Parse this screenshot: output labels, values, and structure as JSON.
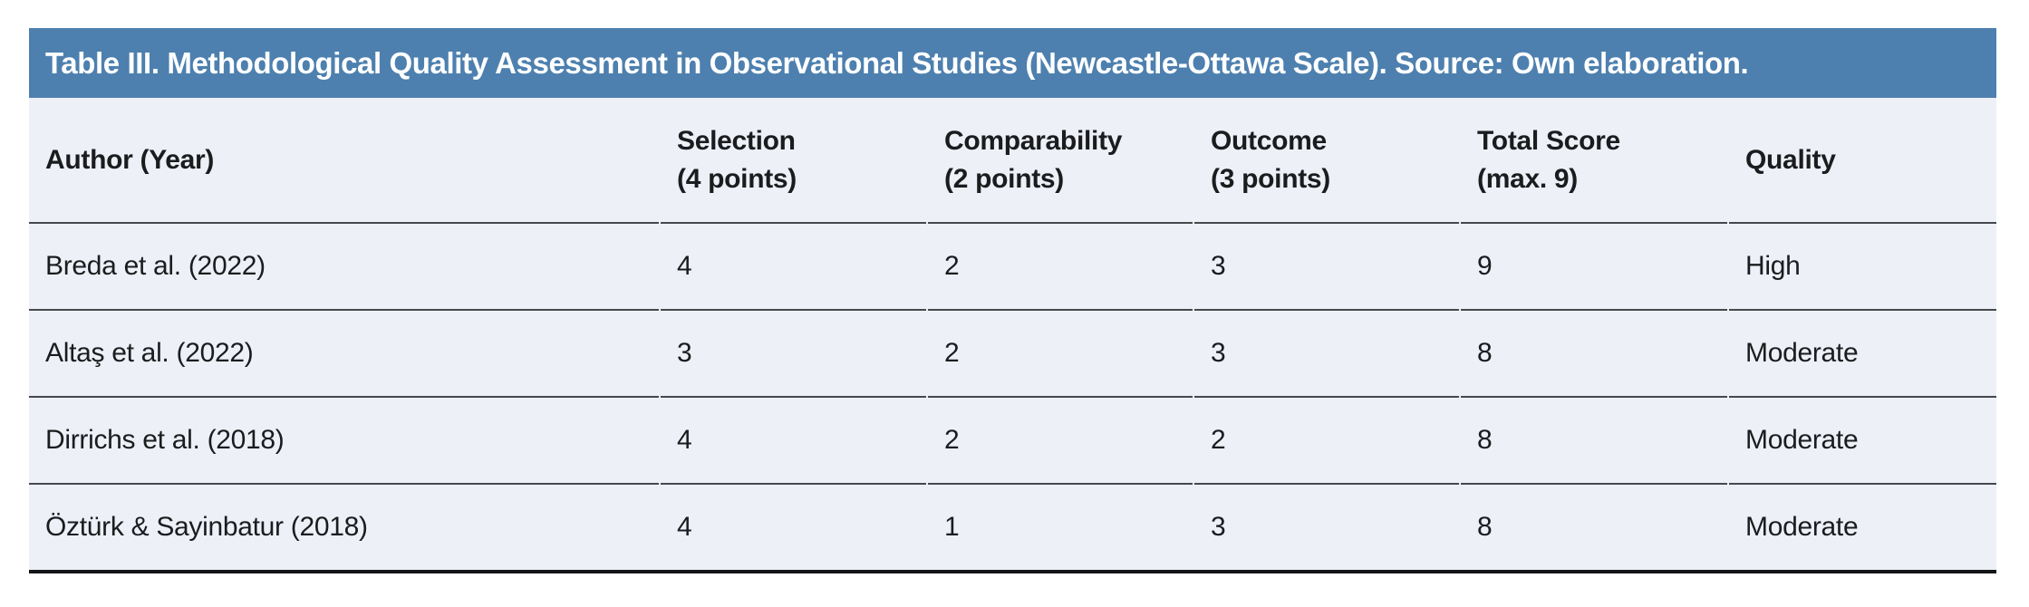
{
  "figure": {
    "title": "Table III. Methodological Quality Assessment in Observational Studies (Newcastle-Ottawa Scale). Source: Own elaboration.",
    "columns": [
      {
        "line1": "Author (Year)",
        "line2": ""
      },
      {
        "line1": "Selection",
        "line2": "(4 points)"
      },
      {
        "line1": "Comparability",
        "line2": "(2 points)"
      },
      {
        "line1": "Outcome",
        "line2": "(3 points)"
      },
      {
        "line1": "Total Score",
        "line2": "(max. 9)"
      },
      {
        "line1": "Quality",
        "line2": ""
      }
    ],
    "rows": [
      {
        "author": "Breda et al. (2022)",
        "selection": "4",
        "comparability": "2",
        "outcome": "3",
        "total_score": "9",
        "quality": "High"
      },
      {
        "author": "Altaş et al. (2022)",
        "selection": "3",
        "comparability": "2",
        "outcome": "3",
        "total_score": "8",
        "quality": "Moderate"
      },
      {
        "author": "Dirrichs et al. (2018)",
        "selection": "4",
        "comparability": "2",
        "outcome": "2",
        "total_score": "8",
        "quality": "Moderate"
      },
      {
        "author": "Öztürk & Sayinbatur (2018)",
        "selection": "4",
        "comparability": "1",
        "outcome": "3",
        "total_score": "8",
        "quality": "Moderate"
      }
    ],
    "colors": {
      "banner_bg": "#4d80af",
      "banner_text": "#ffffff",
      "row_bg": "#edf0f7",
      "separator": "#47484c",
      "bottom_border": "#141517",
      "body_text": "#1b1c1e"
    }
  }
}
